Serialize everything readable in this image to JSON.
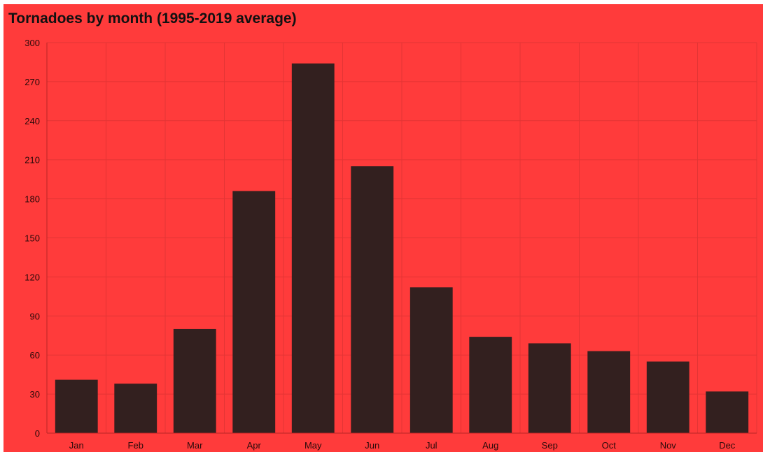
{
  "colors": {
    "background": "#ff3b3b",
    "bar": "#33201f",
    "grid": "#e33434",
    "text": "#111111"
  },
  "chart_data": {
    "type": "bar",
    "title": "Tornadoes by month (1995-2019 average)",
    "xlabel": "",
    "ylabel": "",
    "categories": [
      "Jan",
      "Feb",
      "Mar",
      "Apr",
      "May",
      "Jun",
      "Jul",
      "Aug",
      "Sep",
      "Oct",
      "Nov",
      "Dec"
    ],
    "values": [
      41,
      38,
      80,
      186,
      284,
      205,
      112,
      74,
      69,
      63,
      55,
      32
    ],
    "ylim": [
      0,
      300
    ],
    "yticks": [
      0,
      30,
      60,
      90,
      120,
      150,
      180,
      210,
      240,
      270,
      300
    ],
    "grid": true,
    "legend": "none"
  }
}
